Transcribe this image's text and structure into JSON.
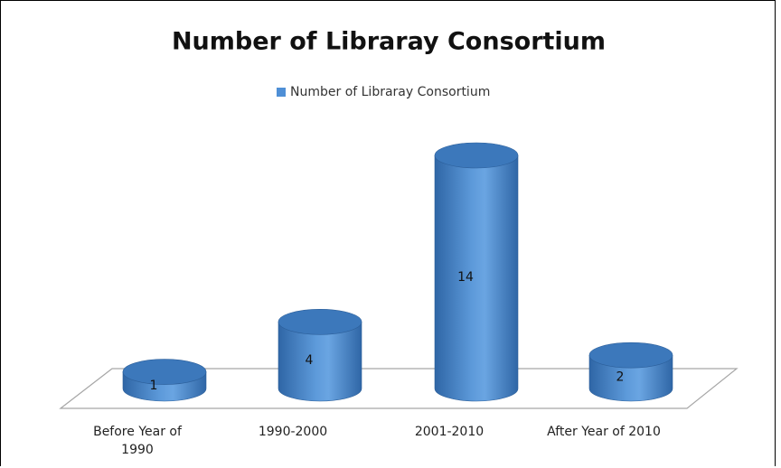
{
  "chart_data": {
    "type": "bar",
    "title": "Number of Libraray Consortium",
    "categories": [
      "Before Year of 1990",
      "1990-2000",
      "2001-2010",
      "After Year of 2010"
    ],
    "series": [
      {
        "name": "Number of Libraray Consortium",
        "color": "#4f8fd6",
        "values": [
          1,
          4,
          14,
          2
        ]
      }
    ]
  }
}
